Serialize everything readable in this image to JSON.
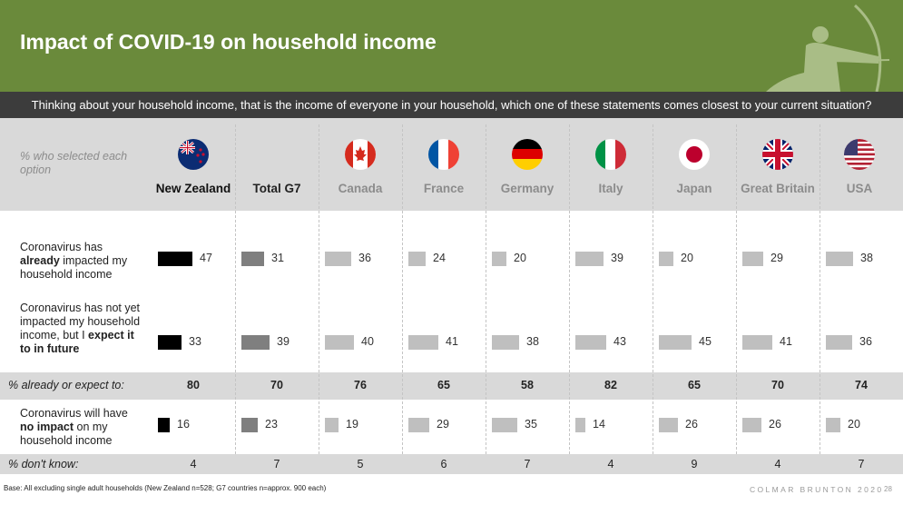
{
  "title": "Impact of COVID-19 on household income",
  "question": "Thinking about your household income, that is the income of everyone in your household, which one of these statements comes closest to your current situation?",
  "legend_note": "% who selected each option",
  "footnote": "Base: All excluding single adult households (New Zealand  n=528; G7 countries n=approx. 900 each)",
  "brand": "COLMAR BRUNTON  2020",
  "page_number": "28",
  "colors": {
    "header_green": "#6a8a3b",
    "question_bar": "#3c3c3c",
    "band_grey": "#d9d9d9",
    "nz_bar": "#000000",
    "g7_bar": "#7f7f7f",
    "country_bar": "#bfbfbf"
  },
  "chart_data": {
    "type": "bar",
    "categories": [
      "New Zealand",
      "Total G7",
      "Canada",
      "France",
      "Germany",
      "Italy",
      "Japan",
      "Great Britain",
      "USA"
    ],
    "series": [
      {
        "key": "already",
        "label_html": "Coronavirus has <b>already</b> impacted my household income",
        "values": [
          47,
          31,
          36,
          24,
          20,
          39,
          20,
          29,
          38
        ]
      },
      {
        "key": "expect",
        "label_html": "Coronavirus has not yet impacted my household income, but I <b>expect it to in future</b>",
        "values": [
          33,
          39,
          40,
          41,
          38,
          43,
          45,
          41,
          36
        ]
      },
      {
        "key": "no_impact",
        "label_html": "Coronavirus will have <b>no impact</b> on my household income",
        "values": [
          16,
          23,
          19,
          29,
          35,
          14,
          26,
          26,
          20
        ]
      }
    ],
    "summary_rows": [
      {
        "key": "already_or_expect",
        "label": "% already or expect to:",
        "values": [
          80,
          70,
          76,
          65,
          58,
          82,
          65,
          70,
          74
        ],
        "bold": true
      },
      {
        "key": "dont_know",
        "label": "% don't know:",
        "values": [
          4,
          7,
          5,
          6,
          7,
          4,
          9,
          4,
          7
        ],
        "bold": false
      }
    ]
  }
}
